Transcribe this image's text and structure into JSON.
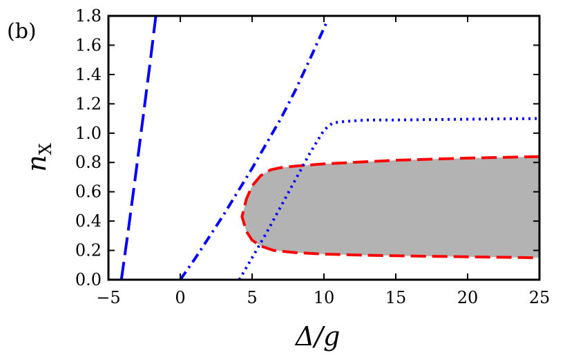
{
  "chart_data": {
    "type": "line",
    "panel_label": "(b)",
    "xlabel": "Δ/g",
    "ylabel_main": "n",
    "ylabel_sub": "X",
    "xlim": [
      -5,
      25
    ],
    "ylim": [
      0.0,
      1.8
    ],
    "x_ticks": [
      -5,
      0,
      5,
      10,
      15,
      20,
      25
    ],
    "x_tick_labels": [
      "−5",
      "0",
      "5",
      "10",
      "15",
      "20",
      "25"
    ],
    "y_ticks": [
      0.0,
      0.2,
      0.4,
      0.6,
      0.8,
      1.0,
      1.2,
      1.4,
      1.6,
      1.8
    ],
    "y_tick_labels": [
      "0.0",
      "0.2",
      "0.4",
      "0.6",
      "0.8",
      "1.0",
      "1.2",
      "1.4",
      "1.6",
      "1.8"
    ],
    "grid": false,
    "colors": {
      "blue": "#0000ff",
      "red": "#ff0000",
      "region": "#b3b3b3"
    },
    "series": [
      {
        "style": "dashed",
        "color": "#0000ff",
        "x": [
          -4.1,
          -3.6,
          -3.1,
          -2.6,
          -2.1,
          -1.7
        ],
        "y": [
          0.0,
          0.35,
          0.72,
          1.1,
          1.48,
          1.8
        ]
      },
      {
        "style": "dashdot",
        "color": "#0000ff",
        "x": [
          0.0,
          1.0,
          2.0,
          3.0,
          4.0,
          5.0,
          6.0,
          7.0,
          8.0,
          9.0,
          10.2
        ],
        "y": [
          0.0,
          0.14,
          0.29,
          0.44,
          0.6,
          0.76,
          0.93,
          1.1,
          1.29,
          1.5,
          1.76
        ]
      },
      {
        "style": "dotted",
        "color": "#0000ff",
        "x": [
          4.1,
          5.0,
          6.0,
          7.0,
          8.0,
          9.0,
          10.0,
          10.6,
          11.5,
          13.0,
          15.0,
          20.0,
          25.0
        ],
        "y": [
          0.0,
          0.15,
          0.32,
          0.5,
          0.68,
          0.86,
          1.02,
          1.07,
          1.08,
          1.09,
          1.09,
          1.095,
          1.1
        ]
      }
    ],
    "region": {
      "fill": "#b3b3b3",
      "edge_color": "#ff0000",
      "edge_style": "dashed",
      "upper": {
        "x": [
          25.0,
          20.0,
          15.0,
          12.0,
          10.0,
          8.0,
          7.0,
          6.3,
          5.6,
          5.0,
          4.6,
          4.3
        ],
        "y": [
          0.84,
          0.83,
          0.815,
          0.8,
          0.79,
          0.775,
          0.765,
          0.75,
          0.71,
          0.64,
          0.55,
          0.43
        ]
      },
      "lower": {
        "x": [
          4.3,
          4.6,
          5.0,
          5.6,
          6.5,
          8.0,
          10.0,
          13.0,
          17.0,
          21.0,
          25.0
        ],
        "y": [
          0.43,
          0.33,
          0.27,
          0.23,
          0.2,
          0.185,
          0.175,
          0.167,
          0.16,
          0.155,
          0.15
        ]
      }
    }
  }
}
